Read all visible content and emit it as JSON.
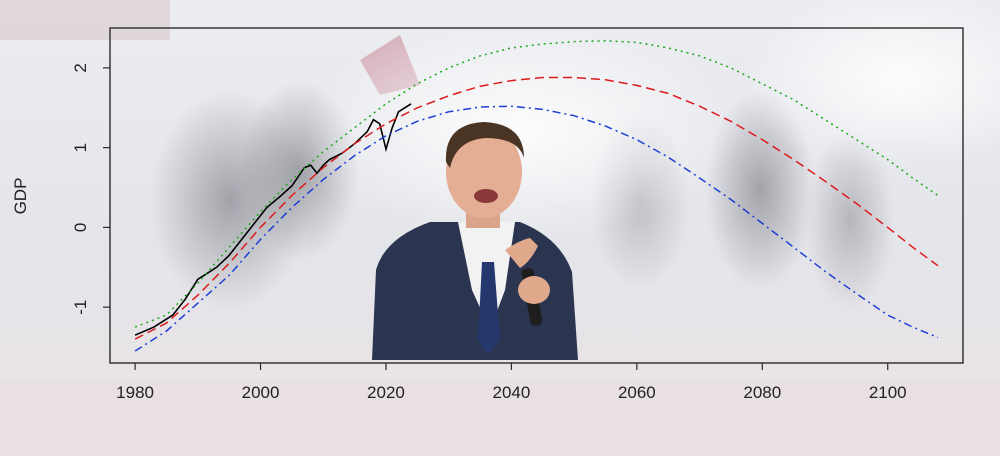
{
  "chart_data": {
    "type": "line",
    "title": "",
    "xlabel": "",
    "ylabel": "GDP",
    "xlim": [
      1976,
      2112
    ],
    "ylim": [
      -1.7,
      2.5
    ],
    "x_ticks": [
      1980,
      2000,
      2020,
      2040,
      2060,
      2080,
      2100
    ],
    "y_ticks": [
      -1,
      0,
      1,
      2
    ],
    "grid": false,
    "legend": "none",
    "background_photo": [
      "crowd-in-tear-gas",
      "man-speaking-into-microphone"
    ],
    "series": [
      {
        "style": "solid",
        "color": "#000000",
        "x": [
          1980,
          1983,
          1986,
          1988,
          1990,
          1992,
          1993,
          1995,
          1997,
          1999,
          2001,
          2003,
          2005,
          2007,
          2008,
          2009,
          2010,
          2011,
          2013,
          2015,
          2017,
          2018,
          2019,
          2020,
          2021,
          2022,
          2024
        ],
        "y": [
          -1.35,
          -1.25,
          -1.1,
          -0.9,
          -0.65,
          -0.55,
          -0.5,
          -0.35,
          -0.15,
          0.05,
          0.25,
          0.38,
          0.52,
          0.75,
          0.78,
          0.68,
          0.78,
          0.85,
          0.93,
          1.05,
          1.2,
          1.35,
          1.3,
          0.98,
          1.25,
          1.45,
          1.55
        ]
      },
      {
        "style": "dotted",
        "color": "#1aa81a",
        "x": [
          1980,
          1985,
          1990,
          1995,
          2000,
          2005,
          2010,
          2015,
          2020,
          2025,
          2030,
          2035,
          2040,
          2045,
          2050,
          2055,
          2060,
          2065,
          2070,
          2075,
          2080,
          2085,
          2090,
          2095,
          2100,
          2104,
          2108
        ],
        "y": [
          -1.25,
          -1.1,
          -0.7,
          -0.25,
          0.2,
          0.6,
          0.95,
          1.25,
          1.55,
          1.8,
          2.0,
          2.15,
          2.25,
          2.3,
          2.33,
          2.34,
          2.32,
          2.25,
          2.15,
          2.0,
          1.8,
          1.6,
          1.35,
          1.1,
          0.85,
          0.62,
          0.4
        ]
      },
      {
        "style": "dashed",
        "color": "#dd1c1c",
        "x": [
          1980,
          1985,
          1990,
          1995,
          2000,
          2005,
          2010,
          2015,
          2020,
          2025,
          2030,
          2035,
          2040,
          2045,
          2050,
          2055,
          2060,
          2065,
          2070,
          2075,
          2080,
          2085,
          2090,
          2095,
          2100,
          2104,
          2108
        ],
        "y": [
          -1.4,
          -1.2,
          -0.85,
          -0.45,
          0.0,
          0.4,
          0.75,
          1.05,
          1.3,
          1.5,
          1.65,
          1.77,
          1.84,
          1.88,
          1.88,
          1.85,
          1.78,
          1.68,
          1.52,
          1.33,
          1.1,
          0.85,
          0.58,
          0.3,
          0.0,
          -0.25,
          -0.48
        ]
      },
      {
        "style": "dot-dash",
        "color": "#1d3fd6",
        "x": [
          1980,
          1985,
          1990,
          1995,
          2000,
          2005,
          2010,
          2015,
          2020,
          2025,
          2030,
          2035,
          2040,
          2045,
          2050,
          2055,
          2060,
          2065,
          2070,
          2075,
          2080,
          2085,
          2090,
          2095,
          2100,
          2104,
          2108
        ],
        "y": [
          -1.55,
          -1.3,
          -0.95,
          -0.6,
          -0.15,
          0.25,
          0.6,
          0.9,
          1.15,
          1.33,
          1.45,
          1.51,
          1.52,
          1.48,
          1.4,
          1.27,
          1.1,
          0.88,
          0.62,
          0.35,
          0.05,
          -0.25,
          -0.55,
          -0.83,
          -1.1,
          -1.25,
          -1.38
        ]
      }
    ]
  }
}
